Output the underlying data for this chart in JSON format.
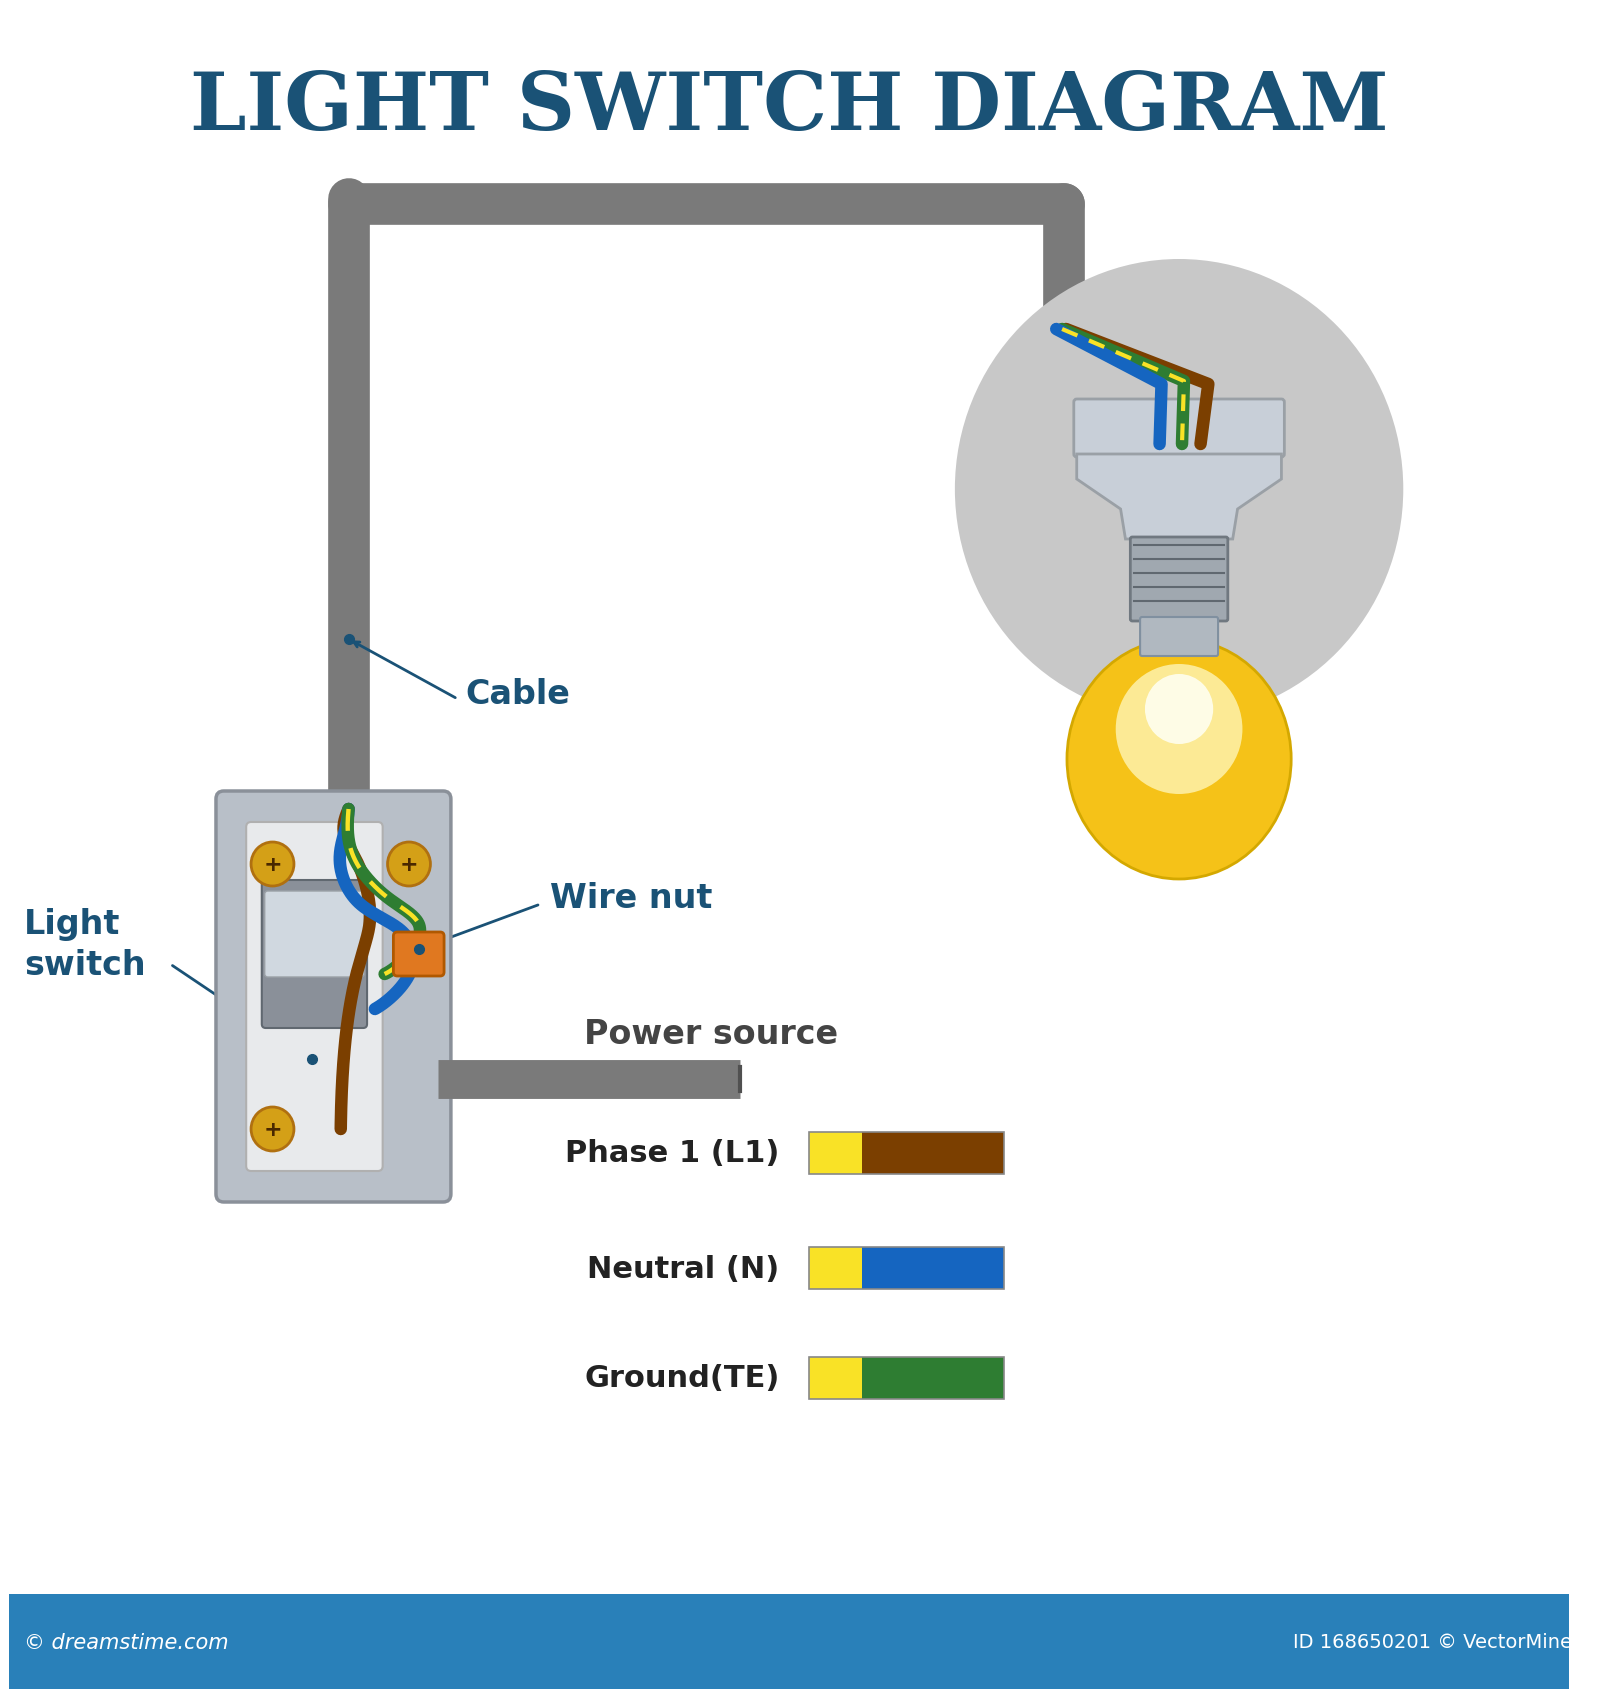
{
  "title": "LIGHT SWITCH DIAGRAM",
  "title_color": "#1a5276",
  "bg_color": "#ffffff",
  "cable_color": "#7a7a7a",
  "cable_dark": "#555555",
  "wire_brown": "#7b3f00",
  "wire_blue": "#1565c0",
  "wire_green": "#2e7d32",
  "wire_yellow": "#f9e226",
  "switch_box_color": "#b8bfc8",
  "switch_box_border": "#8a9099",
  "annotation_color": "#1a5276",
  "power_label_color": "#444444",
  "bottom_bar_color": "#2980b9",
  "dreamstime_text": "© dreamstime.com",
  "id_text": "ID 168650201 © VectorMine",
  "wire_nut_color": "#e07820",
  "screw_color": "#d4a017",
  "screw_dark": "#b07010",
  "bulb_yellow": "#f5c218",
  "bulb_glow": "#fff8c0",
  "bulb_halo": "#c8c8c8",
  "toggle_bg": "#9aabb0",
  "socket_color": "#c8cfd8",
  "socket_dark": "#9aa0a6",
  "white_plate": "#e8eaec"
}
